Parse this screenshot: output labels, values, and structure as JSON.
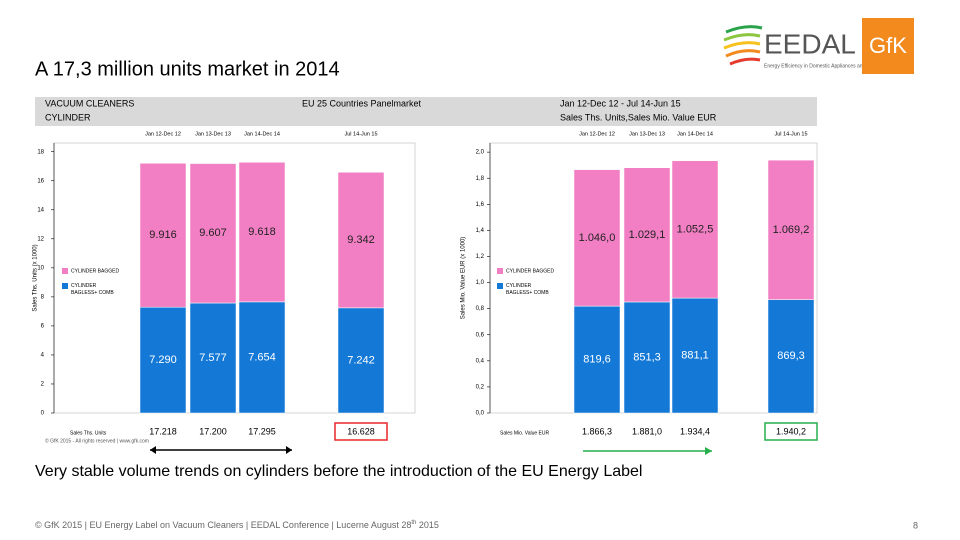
{
  "header": {
    "title": "A 17,3 million units market in 2014",
    "band": {
      "r1c1": "VACUUM CLEANERS",
      "r1c2": "EU 25 Countries  Panelmarket",
      "r1c3": "Jan 12-Dec 12 - Jul 14-Jun 15",
      "r2c1": "CYLINDER",
      "r2c3": "Sales Ths. Units,Sales Mio. Value EUR"
    },
    "logo_eedal": "EEDAL",
    "logo_eedal_sub": "Energy Efficiency in Domestic Appliances and Lighting",
    "logo_gfk": "GfK"
  },
  "copyright": "© GfK 2015 - All rights reserved | www.gfk.com",
  "subtitle": "Very stable volume trends on cylinders before the introduction of the EU Energy Label",
  "footer": {
    "text": "© GfK 2015 | EU Energy Label on Vacuum Cleaners | EEDAL Conference | Lucerne August 28",
    "sup": "th",
    "end": " 2015",
    "page": "8"
  },
  "chart_data": [
    {
      "type": "bar",
      "stacked": true,
      "y_label": "Sales Ths. Units (x 1000)",
      "categories": [
        "Jan 12-Dec 12",
        "Jan 13-Dec 13",
        "Jan 14-Dec 14",
        "Jul 14-Jun 15"
      ],
      "series": [
        {
          "name": "CYLINDER BAGLESS+ COMB",
          "color": "#1479d6",
          "values": [
            7.29,
            7.577,
            7.654,
            7.242
          ],
          "value_labels": [
            "7.290",
            "7.577",
            "7.654",
            "7.242"
          ]
        },
        {
          "name": "CYLINDER BAGGED",
          "color": "#f27fc4",
          "values": [
            9.916,
            9.607,
            9.618,
            9.342
          ]
        }
      ],
      "totals": {
        "label": "Sales Ths. Units",
        "values": [
          17.218,
          17.2,
          17.295,
          16.628
        ],
        "value_labels": [
          "17.218",
          "17.200",
          "17.295",
          "16.628"
        ]
      },
      "ylim": [
        0,
        18.6
      ],
      "yticks": [
        0,
        2,
        4,
        6,
        8,
        10,
        12,
        14,
        16,
        18
      ]
    },
    {
      "type": "bar",
      "stacked": true,
      "y_label": "Sales Mio. Value EUR (x 1000)",
      "categories": [
        "Jan 12-Dec 12",
        "Jan 13-Dec 13",
        "Jan 14-Dec 14",
        "Jul 14-Jun 15"
      ],
      "series": [
        {
          "name": "CYLINDER BAGLESS+ COMB",
          "color": "#1479d6",
          "values": [
            0.8196,
            0.8513,
            0.8811,
            0.8693
          ],
          "value_labels": [
            "819,6",
            "851,3",
            "881,1",
            "869,3"
          ]
        },
        {
          "name": "CYLINDER BAGGED",
          "color": "#f27fc4",
          "values": [
            1.046,
            1.0291,
            1.0525,
            1.0692
          ],
          "value_labels": [
            "1.046,0",
            "1.029,1",
            "1.052,5",
            "1.069,2"
          ]
        }
      ],
      "totals": {
        "label": "Sales Mio. Value EUR",
        "values": [
          1.8663,
          1.881,
          1.9344,
          1.9402
        ],
        "value_labels": [
          "1.866,3",
          "1.881,0",
          "1.934,4",
          "1.940,2"
        ]
      },
      "ylim": [
        0,
        2.07
      ],
      "yticks": [
        {
          "value": 0,
          "label": "0,0"
        },
        {
          "value": 0.2,
          "label": "0,2"
        },
        {
          "value": 0.4,
          "label": "0,4"
        },
        {
          "value": 0.6,
          "label": "0,6"
        },
        {
          "value": 0.8,
          "label": "0,8"
        },
        {
          "value": 1,
          "label": "1,0"
        },
        {
          "value": 1.2,
          "label": "1,2"
        },
        {
          "value": 1.4,
          "label": "1,4"
        },
        {
          "value": 1.6,
          "label": "1,6"
        },
        {
          "value": 1.8,
          "label": "1,8"
        },
        {
          "value": 2,
          "label": "2,0"
        }
      ]
    }
  ]
}
